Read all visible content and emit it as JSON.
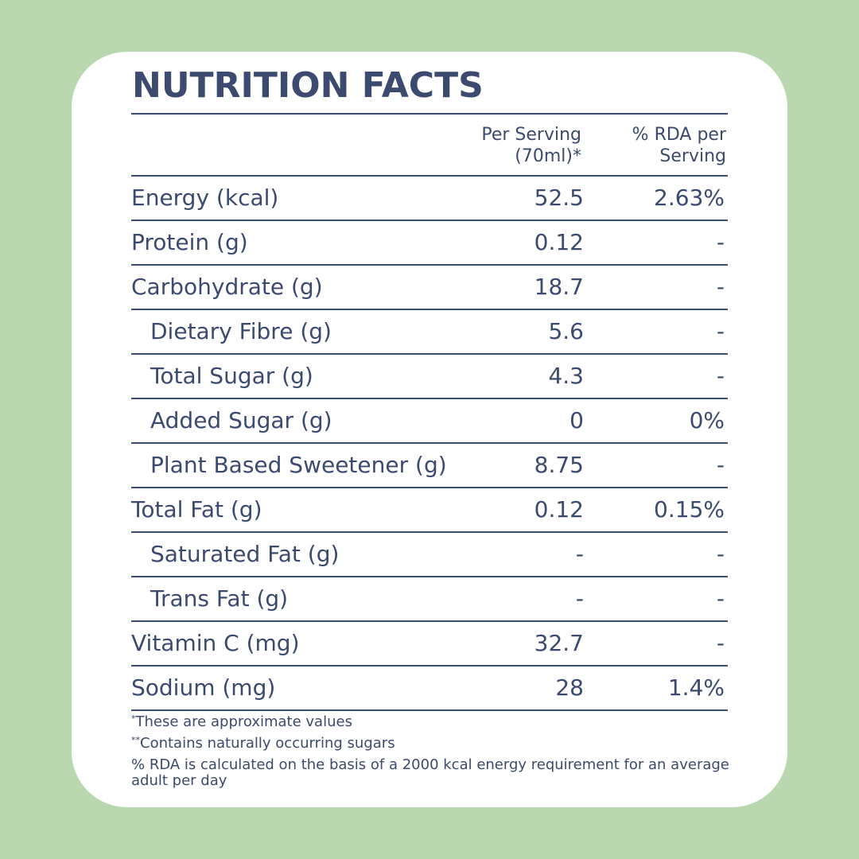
{
  "title": "NUTRITION FACTS",
  "headers": {
    "per_serving_line1": "Per Serving",
    "per_serving_line2": "(70ml)*",
    "rda_line1": "% RDA per",
    "rda_line2": "Serving"
  },
  "rows": [
    {
      "label": "Energy (kcal)",
      "per": "52.5",
      "rda": "2.63%",
      "sub": false
    },
    {
      "label": "Protein (g)",
      "per": "0.12",
      "rda": "-",
      "sub": false
    },
    {
      "label": "Carbohydrate (g)",
      "per": "18.7",
      "rda": "-",
      "sub": false
    },
    {
      "label": "Dietary Fibre (g)",
      "per": "5.6",
      "rda": "-",
      "sub": true
    },
    {
      "label": "Total Sugar (g)",
      "per": "4.3",
      "rda": "-",
      "sub": true
    },
    {
      "label": "Added Sugar (g)",
      "per": "0",
      "rda": "0%",
      "sub": true
    },
    {
      "label": "Plant Based Sweetener (g)",
      "per": "8.75",
      "rda": "-",
      "sub": true
    },
    {
      "label": "Total Fat (g)",
      "per": "0.12",
      "rda": "0.15%",
      "sub": false
    },
    {
      "label": "Saturated Fat (g)",
      "per": "-",
      "rda": "-",
      "sub": true
    },
    {
      "label": "Trans Fat (g)",
      "per": "-",
      "rda": "-",
      "sub": true
    },
    {
      "label": "Vitamin C (mg)",
      "per": "32.7",
      "rda": "-",
      "sub": false
    },
    {
      "label": "Sodium (mg)",
      "per": "28",
      "rda": "1.4%",
      "sub": false
    }
  ],
  "notes": {
    "note1_mark": "*",
    "note1_text": "These are approximate values",
    "note2_mark": "**",
    "note2_text": "Contains naturally occurring sugars",
    "note3_text": "%  RDA is calculated on the basis of a 2000 kcal energy requirement for an average adult per day"
  },
  "colors": {
    "background": "#b9d8b0",
    "card": "#ffffff",
    "text": "#3b4a6e"
  }
}
